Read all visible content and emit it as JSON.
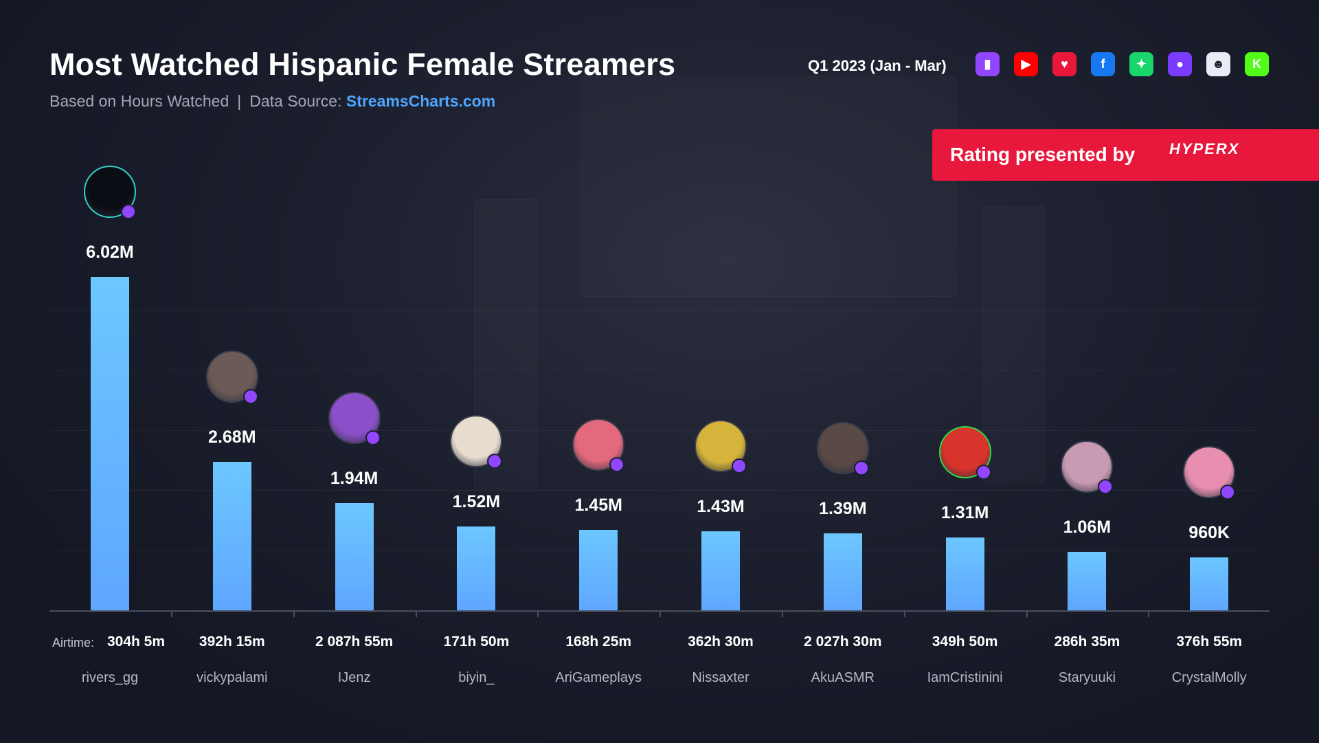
{
  "header": {
    "title": "Most Watched Hispanic Female Streamers",
    "subtitle_prefix": "Based on Hours Watched",
    "separator": "|",
    "source_label": "Data Source:",
    "source_link": "StreamsCharts.com",
    "period": "Q1 2023 (Jan - Mar)"
  },
  "platform_icons": [
    {
      "name": "twitch-icon",
      "color": "#9146ff",
      "glyph": "▮"
    },
    {
      "name": "youtube-icon",
      "color": "#ff0000",
      "glyph": "▶"
    },
    {
      "name": "heart-icon",
      "color": "#e8183c",
      "glyph": "♥"
    },
    {
      "name": "facebook-icon",
      "color": "#1877f2",
      "glyph": "f"
    },
    {
      "name": "trovo-icon",
      "color": "#19d66b",
      "glyph": "✦"
    },
    {
      "name": "nimo-icon",
      "color": "#7b3cff",
      "glyph": "●"
    },
    {
      "name": "ghost-icon",
      "color": "#e8edf5",
      "glyph": "☻"
    },
    {
      "name": "kick-icon",
      "color": "#53fc18",
      "glyph": "K"
    }
  ],
  "sponsor": {
    "text": "Rating presented by",
    "logo": "HYPERX"
  },
  "airtime_label": "Airtime:",
  "chart_data": {
    "type": "bar",
    "title": "Most Watched Hispanic Female Streamers",
    "ylabel": "Hours Watched",
    "ylim": [
      0,
      6020000
    ],
    "categories": [
      "rivers_gg",
      "vickypalami",
      "IJenz",
      "biyin_",
      "AriGameplays",
      "Nissaxter",
      "AkuASMR",
      "IamCristinini",
      "Staryuuki",
      "CrystalMolly"
    ],
    "values": [
      6020000,
      2680000,
      1940000,
      1520000,
      1450000,
      1430000,
      1390000,
      1310000,
      1060000,
      960000
    ],
    "value_labels": [
      "6.02M",
      "2.68M",
      "1.94M",
      "1.52M",
      "1.45M",
      "1.43M",
      "1.39M",
      "1.31M",
      "1.06M",
      "960K"
    ],
    "airtime": [
      "304h 5m",
      "392h 15m",
      "2 087h 55m",
      "171h 50m",
      "168h 25m",
      "362h 30m",
      "2 027h 30m",
      "349h 50m",
      "286h 35m",
      "376h 55m"
    ],
    "avatar_colors": [
      "#0a0d14",
      "#6b5a55",
      "#8a4fc9",
      "#e8dccf",
      "#e26a7c",
      "#d6b33a",
      "#5a4a46",
      "#d9342b",
      "#c99bb3",
      "#e88fb1"
    ]
  }
}
